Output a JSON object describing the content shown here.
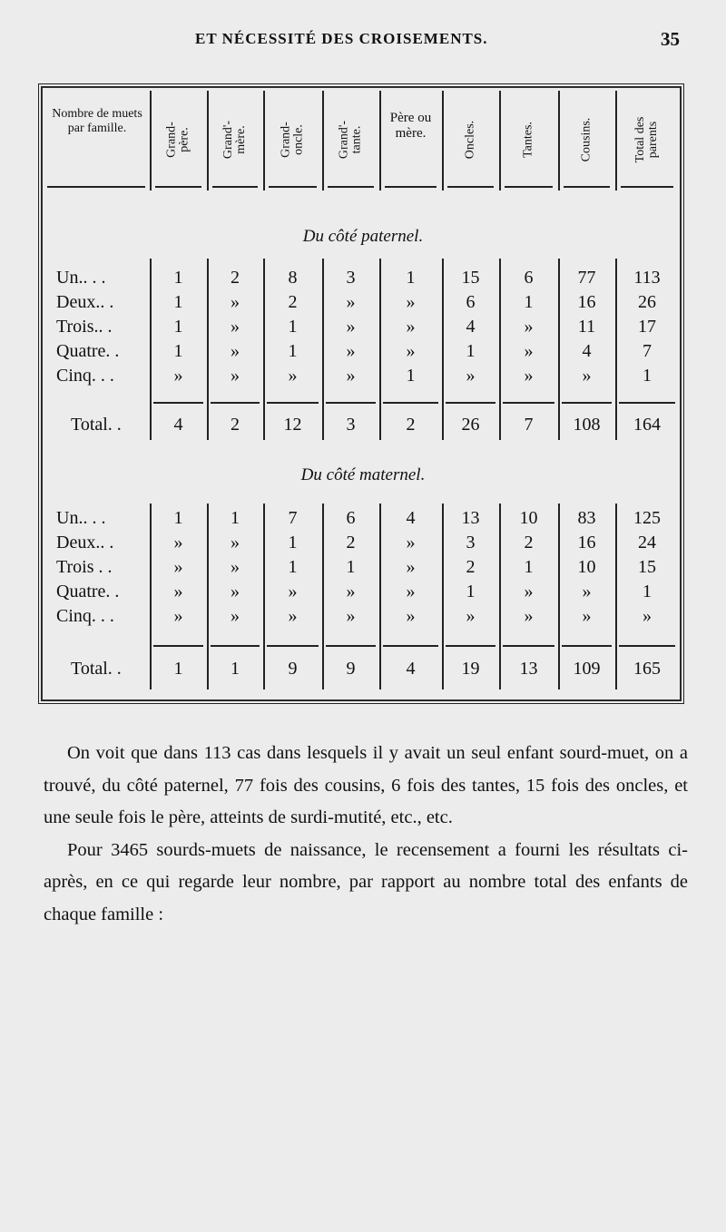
{
  "running_head": {
    "title": "ET NÉCESSITÉ DES CROISEMENTS.",
    "page_number": "35"
  },
  "table": {
    "row_header": "Nombre de muets par famille.",
    "columns": [
      "Grand-père.",
      "Grand'-mère.",
      "Grand-oncle.",
      "Grand'-tante.",
      "Père ou mère.",
      "Oncles.",
      "Tantes.",
      "Cousins.",
      "Total des parents"
    ],
    "sections": [
      {
        "title": "Du côté paternel.",
        "rows": [
          {
            "label": "Un.. . .",
            "values": [
              "1",
              "2",
              "8",
              "3",
              "1",
              "15",
              "6",
              "77",
              "113"
            ]
          },
          {
            "label": "Deux.. .",
            "values": [
              "1",
              "»",
              "2",
              "»",
              "»",
              "6",
              "1",
              "16",
              "26"
            ]
          },
          {
            "label": "Trois.. .",
            "values": [
              "1",
              "»",
              "1",
              "»",
              "»",
              "4",
              "»",
              "11",
              "17"
            ]
          },
          {
            "label": "Quatre. .",
            "values": [
              "1",
              "»",
              "1",
              "»",
              "»",
              "1",
              "»",
              "4",
              "7"
            ]
          },
          {
            "label": "Cinq. . .",
            "values": [
              "»",
              "»",
              "»",
              "»",
              "1",
              "»",
              "»",
              "»",
              "1"
            ]
          }
        ],
        "total": {
          "label": "Total. .",
          "values": [
            "4",
            "2",
            "12",
            "3",
            "2",
            "26",
            "7",
            "108",
            "164"
          ]
        }
      },
      {
        "title": "Du côté maternel.",
        "rows": [
          {
            "label": "Un.. . .",
            "values": [
              "1",
              "1",
              "7",
              "6",
              "4",
              "13",
              "10",
              "83",
              "125"
            ]
          },
          {
            "label": "Deux.. .",
            "values": [
              "»",
              "»",
              "1",
              "2",
              "»",
              "3",
              "2",
              "16",
              "24"
            ]
          },
          {
            "label": "Trois . .",
            "values": [
              "»",
              "»",
              "1",
              "1",
              "»",
              "2",
              "1",
              "10",
              "15"
            ]
          },
          {
            "label": "Quatre. .",
            "values": [
              "»",
              "»",
              "»",
              "»",
              "»",
              "1",
              "»",
              "»",
              "1"
            ]
          },
          {
            "label": "Cinq. . .",
            "values": [
              "»",
              "»",
              "»",
              "»",
              "»",
              "»",
              "»",
              "»",
              "»"
            ]
          }
        ],
        "total": {
          "label": "Total. .",
          "values": [
            "1",
            "1",
            "9",
            "9",
            "4",
            "19",
            "13",
            "109",
            "165"
          ]
        }
      }
    ]
  },
  "body": {
    "paragraphs": [
      "On voit que dans 113 cas dans lesquels il y avait un seul enfant sourd-muet, on a trouvé, du côté paternel, 77 fois des cousins, 6 fois des tantes, 15 fois des oncles, et une seule fois le père, atteints de surdi-mutité, etc., etc.",
      "Pour 3465 sourds-muets de naissance, le recensement a fourni les résultats ci-après, en ce qui regarde leur nombre, par rapport au nombre total des enfants de chaque famille :"
    ]
  }
}
